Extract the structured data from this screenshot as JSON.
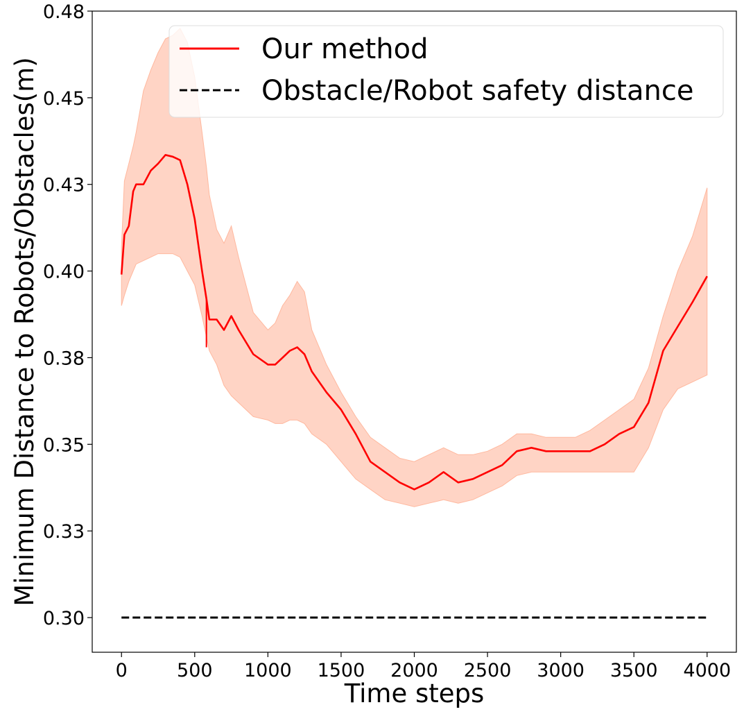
{
  "chart_data": {
    "type": "line",
    "title": "",
    "xlabel": "Time steps",
    "ylabel": "Minimum Distance to Robots/Obstacles(m)",
    "xlim": [
      -200,
      4200
    ],
    "ylim": [
      0.29,
      0.475
    ],
    "xticks": [
      0,
      500,
      1000,
      1500,
      2000,
      2500,
      3000,
      3500,
      4000
    ],
    "xtick_labels": [
      "0",
      "500",
      "1000",
      "1500",
      "2000",
      "2500",
      "3000",
      "3500",
      "4000"
    ],
    "yticks": [
      0.3,
      0.325,
      0.35,
      0.375,
      0.4,
      0.425,
      0.45,
      0.475
    ],
    "ytick_labels": [
      "0.30",
      "0.33",
      "0.35",
      "0.38",
      "0.40",
      "0.43",
      "0.45",
      "0.48"
    ],
    "legend_position": "top-right",
    "series": [
      {
        "name": "Our method",
        "style": "solid",
        "color": "#ff0000",
        "band_color": "#ffb89e",
        "x": [
          0,
          20,
          50,
          80,
          100,
          150,
          200,
          250,
          300,
          350,
          400,
          450,
          500,
          550,
          580,
          600,
          650,
          700,
          750,
          800,
          900,
          1000,
          1050,
          1100,
          1150,
          1200,
          1250,
          1300,
          1400,
          1500,
          1600,
          1700,
          1800,
          1900,
          2000,
          2100,
          2200,
          2300,
          2400,
          2500,
          2600,
          2700,
          2800,
          2900,
          3000,
          3100,
          3200,
          3300,
          3400,
          3500,
          3600,
          3700,
          3800,
          3900,
          4000
        ],
        "mean": [
          0.399,
          0.4105,
          0.413,
          0.423,
          0.425,
          0.425,
          0.429,
          0.431,
          0.4335,
          0.433,
          0.432,
          0.425,
          0.415,
          0.4,
          0.392,
          0.386,
          0.386,
          0.383,
          0.387,
          0.383,
          0.376,
          0.373,
          0.373,
          0.375,
          0.377,
          0.378,
          0.376,
          0.371,
          0.365,
          0.36,
          0.353,
          0.345,
          0.342,
          0.339,
          0.337,
          0.339,
          0.342,
          0.339,
          0.34,
          0.342,
          0.344,
          0.348,
          0.349,
          0.348,
          0.348,
          0.348,
          0.348,
          0.35,
          0.353,
          0.355,
          0.362,
          0.377,
          0.384,
          0.391,
          0.3985
        ],
        "upper": [
          0.407,
          0.426,
          0.431,
          0.436,
          0.44,
          0.452,
          0.458,
          0.463,
          0.467,
          0.468,
          0.47,
          0.466,
          0.456,
          0.44,
          0.43,
          0.422,
          0.412,
          0.408,
          0.413,
          0.404,
          0.388,
          0.383,
          0.385,
          0.39,
          0.393,
          0.397,
          0.394,
          0.383,
          0.373,
          0.365,
          0.358,
          0.352,
          0.349,
          0.346,
          0.345,
          0.347,
          0.349,
          0.347,
          0.347,
          0.348,
          0.35,
          0.353,
          0.353,
          0.352,
          0.352,
          0.352,
          0.354,
          0.357,
          0.36,
          0.363,
          0.372,
          0.387,
          0.4,
          0.41,
          0.424
        ],
        "lower": [
          0.39,
          0.393,
          0.397,
          0.4,
          0.402,
          0.403,
          0.404,
          0.405,
          0.405,
          0.405,
          0.404,
          0.4,
          0.396,
          0.387,
          0.381,
          0.377,
          0.373,
          0.367,
          0.364,
          0.362,
          0.358,
          0.357,
          0.356,
          0.356,
          0.357,
          0.357,
          0.356,
          0.353,
          0.35,
          0.345,
          0.34,
          0.337,
          0.334,
          0.333,
          0.332,
          0.333,
          0.334,
          0.333,
          0.334,
          0.336,
          0.338,
          0.341,
          0.342,
          0.342,
          0.342,
          0.342,
          0.342,
          0.342,
          0.342,
          0.342,
          0.349,
          0.36,
          0.366,
          0.368,
          0.37
        ],
        "spike": {
          "x": 580,
          "min": 0.378
        }
      },
      {
        "name": "Obstacle/Robot safety distance",
        "style": "dashed",
        "color": "#000000",
        "x": [
          0,
          4000
        ],
        "y": [
          0.3,
          0.3
        ]
      }
    ]
  }
}
